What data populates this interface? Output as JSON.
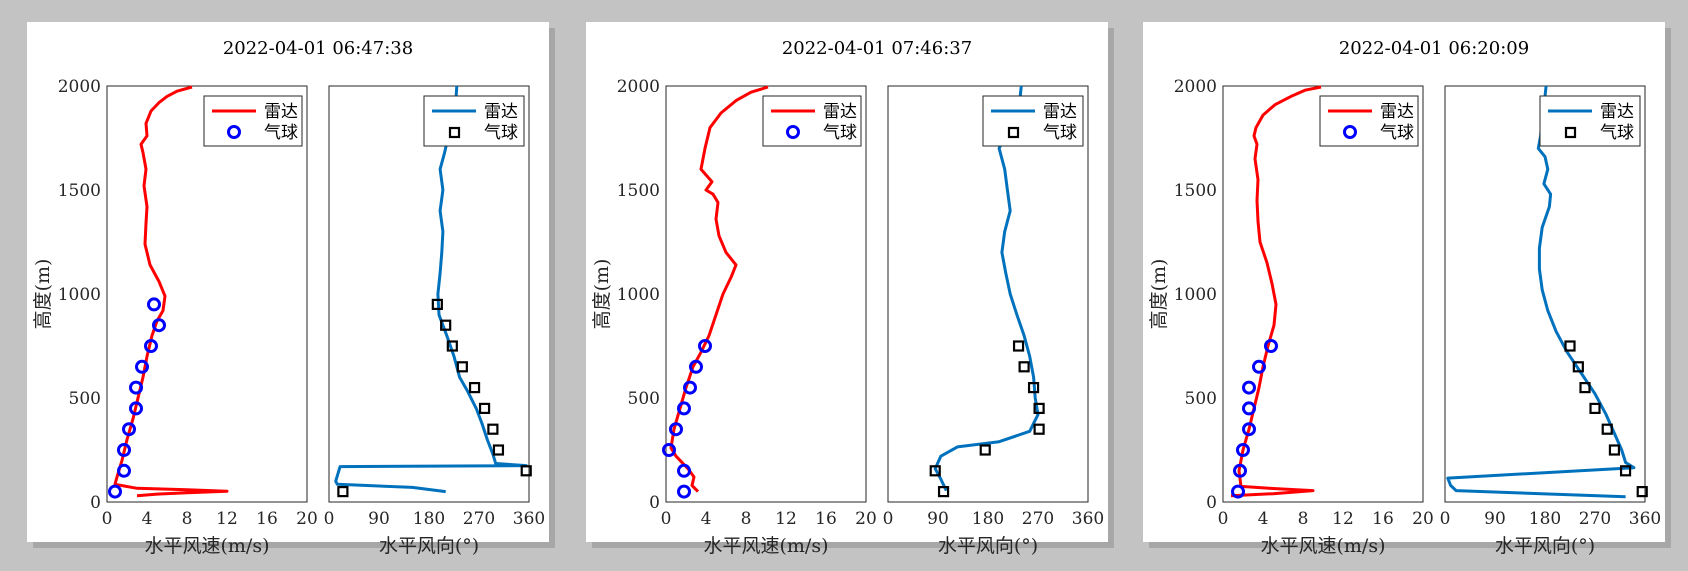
{
  "colors": {
    "radar_speed": "#ff0000",
    "balloon_speed": "#0000ff",
    "radar_dir": "#0072bd",
    "balloon_dir": "#000000"
  },
  "chart_data": [
    {
      "type": "line",
      "title": "2022-04-01 06:47:38",
      "legend": {
        "radar": "雷达",
        "balloon": "气球",
        "placement": "top-right"
      },
      "speed": {
        "xlabel": "水平风速(m/s)",
        "ylabel": "高度(m)",
        "xlim": [
          0,
          20
        ],
        "ylim": [
          0,
          2000
        ],
        "xticks": [
          "0",
          "4",
          "8",
          "12",
          "16",
          "20"
        ],
        "yticks": [
          "0",
          "500",
          "1000",
          "1500",
          "2000"
        ],
        "grid": true,
        "radar": [
          [
            3,
            30
          ],
          [
            5,
            38
          ],
          [
            8,
            44
          ],
          [
            12,
            52
          ],
          [
            8,
            59
          ],
          [
            3,
            66
          ],
          [
            0.8,
            85
          ],
          [
            1,
            120
          ],
          [
            1.5,
            200
          ],
          [
            2,
            300
          ],
          [
            2.6,
            400
          ],
          [
            3.1,
            500
          ],
          [
            3.6,
            600
          ],
          [
            4,
            700
          ],
          [
            4.5,
            800
          ],
          [
            5,
            870
          ],
          [
            5.6,
            920
          ],
          [
            5.8,
            990
          ],
          [
            5.2,
            1060
          ],
          [
            4.3,
            1140
          ],
          [
            3.8,
            1240
          ],
          [
            3.9,
            1340
          ],
          [
            4,
            1420
          ],
          [
            3.7,
            1520
          ],
          [
            3.9,
            1600
          ],
          [
            3.6,
            1680
          ],
          [
            3.4,
            1720
          ],
          [
            4,
            1760
          ],
          [
            3.9,
            1820
          ],
          [
            4.4,
            1880
          ],
          [
            5.2,
            1920
          ],
          [
            6,
            1950
          ],
          [
            7,
            1975
          ],
          [
            8.5,
            1995
          ]
        ],
        "balloon": [
          [
            0.8,
            50
          ],
          [
            1.7,
            150
          ],
          [
            1.7,
            250
          ],
          [
            2.2,
            350
          ],
          [
            2.9,
            450
          ],
          [
            2.9,
            550
          ],
          [
            3.5,
            650
          ],
          [
            4.4,
            750
          ],
          [
            5.2,
            850
          ],
          [
            4.7,
            950
          ]
        ]
      },
      "direction": {
        "xlabel": "水平风向(°)",
        "xlim": [
          0,
          360
        ],
        "ylim": [
          0,
          2000
        ],
        "xticks": [
          "0",
          "90",
          "180",
          "270",
          "360"
        ],
        "grid": true,
        "radar": [
          [
            210,
            50
          ],
          [
            150,
            70
          ],
          [
            15,
            85
          ],
          [
            12,
            100
          ],
          [
            20,
            170
          ],
          [
            355,
            175
          ],
          [
            300,
            185
          ],
          [
            295,
            230
          ],
          [
            285,
            300
          ],
          [
            275,
            380
          ],
          [
            265,
            450
          ],
          [
            250,
            530
          ],
          [
            235,
            600
          ],
          [
            225,
            700
          ],
          [
            212,
            800
          ],
          [
            198,
            900
          ],
          [
            196,
            1000
          ],
          [
            200,
            1100
          ],
          [
            203,
            1200
          ],
          [
            205,
            1300
          ],
          [
            200,
            1400
          ],
          [
            205,
            1500
          ],
          [
            200,
            1600
          ],
          [
            208,
            1680
          ],
          [
            215,
            1760
          ],
          [
            225,
            1840
          ],
          [
            228,
            1920
          ],
          [
            230,
            2000
          ]
        ],
        "balloon": [
          [
            25,
            50
          ],
          [
            355,
            150
          ],
          [
            305,
            250
          ],
          [
            295,
            350
          ],
          [
            280,
            450
          ],
          [
            262,
            550
          ],
          [
            240,
            650
          ],
          [
            222,
            750
          ],
          [
            210,
            850
          ],
          [
            195,
            950
          ]
        ]
      }
    },
    {
      "type": "line",
      "title": "2022-04-01 07:46:37",
      "legend": {
        "radar": "雷达",
        "balloon": "气球",
        "placement": "top-right"
      },
      "speed": {
        "xlabel": "水平风速(m/s)",
        "ylabel": "高度(m)",
        "xlim": [
          0,
          20
        ],
        "ylim": [
          0,
          2000
        ],
        "xticks": [
          "0",
          "4",
          "8",
          "12",
          "16",
          "20"
        ],
        "yticks": [
          "0",
          "500",
          "1000",
          "1500",
          "2000"
        ],
        "grid": true,
        "radar": [
          [
            3.2,
            50
          ],
          [
            2.6,
            80
          ],
          [
            2.8,
            120
          ],
          [
            2.2,
            160
          ],
          [
            1,
            220
          ],
          [
            0.5,
            260
          ],
          [
            0.8,
            350
          ],
          [
            1.4,
            450
          ],
          [
            2,
            550
          ],
          [
            2.7,
            650
          ],
          [
            3.5,
            720
          ],
          [
            4.3,
            800
          ],
          [
            5,
            900
          ],
          [
            5.7,
            1000
          ],
          [
            6.5,
            1080
          ],
          [
            7,
            1140
          ],
          [
            6,
            1200
          ],
          [
            5.3,
            1280
          ],
          [
            5,
            1360
          ],
          [
            5.2,
            1440
          ],
          [
            4.7,
            1480
          ],
          [
            4,
            1500
          ],
          [
            4.6,
            1540
          ],
          [
            3.5,
            1600
          ],
          [
            3.9,
            1700
          ],
          [
            4.4,
            1800
          ],
          [
            5.5,
            1870
          ],
          [
            7,
            1930
          ],
          [
            8.5,
            1970
          ],
          [
            10.2,
            1995
          ]
        ],
        "balloon": [
          [
            1.8,
            50
          ],
          [
            1.8,
            150
          ],
          [
            0.3,
            250
          ],
          [
            1,
            350
          ],
          [
            1.8,
            450
          ],
          [
            2.4,
            550
          ],
          [
            3,
            650
          ],
          [
            3.9,
            750
          ]
        ]
      },
      "direction": {
        "xlabel": "水平风向(°)",
        "xlim": [
          0,
          360
        ],
        "ylim": [
          0,
          2000
        ],
        "xticks": [
          "0",
          "90",
          "180",
          "270",
          "360"
        ],
        "grid": true,
        "radar": [
          [
            105,
            55
          ],
          [
            95,
            110
          ],
          [
            85,
            160
          ],
          [
            95,
            220
          ],
          [
            125,
            265
          ],
          [
            200,
            290
          ],
          [
            255,
            340
          ],
          [
            270,
            420
          ],
          [
            265,
            500
          ],
          [
            262,
            600
          ],
          [
            255,
            700
          ],
          [
            245,
            800
          ],
          [
            232,
            900
          ],
          [
            220,
            1000
          ],
          [
            212,
            1100
          ],
          [
            205,
            1200
          ],
          [
            210,
            1300
          ],
          [
            220,
            1400
          ],
          [
            215,
            1500
          ],
          [
            210,
            1600
          ],
          [
            200,
            1700
          ],
          [
            218,
            1800
          ],
          [
            235,
            1880
          ],
          [
            238,
            1950
          ],
          [
            240,
            2000
          ]
        ],
        "balloon": [
          [
            100,
            50
          ],
          [
            85,
            150
          ],
          [
            175,
            250
          ],
          [
            272,
            350
          ],
          [
            272,
            450
          ],
          [
            262,
            550
          ],
          [
            245,
            650
          ],
          [
            235,
            750
          ]
        ]
      }
    },
    {
      "type": "line",
      "title": "2022-04-01 06:20:09",
      "legend": {
        "radar": "雷达",
        "balloon": "气球",
        "placement": "top-right"
      },
      "speed": {
        "xlabel": "水平风速(m/s)",
        "ylabel": "高度(m)",
        "xlim": [
          0,
          20
        ],
        "ylim": [
          0,
          2000
        ],
        "xticks": [
          "0",
          "4",
          "8",
          "12",
          "16",
          "20"
        ],
        "yticks": [
          "0",
          "500",
          "1000",
          "1500",
          "2000"
        ],
        "grid": true,
        "radar": [
          [
            0.8,
            30
          ],
          [
            5,
            40
          ],
          [
            9,
            55
          ],
          [
            5,
            65
          ],
          [
            1.8,
            75
          ],
          [
            1.6,
            150
          ],
          [
            2,
            250
          ],
          [
            2.6,
            350
          ],
          [
            3.1,
            450
          ],
          [
            3.6,
            550
          ],
          [
            4,
            650
          ],
          [
            4.5,
            750
          ],
          [
            5.1,
            850
          ],
          [
            5.3,
            950
          ],
          [
            4.9,
            1050
          ],
          [
            4.4,
            1150
          ],
          [
            3.7,
            1250
          ],
          [
            3.5,
            1350
          ],
          [
            3.4,
            1450
          ],
          [
            3.5,
            1550
          ],
          [
            3.2,
            1650
          ],
          [
            3.4,
            1720
          ],
          [
            3.1,
            1760
          ],
          [
            3.3,
            1800
          ],
          [
            4,
            1860
          ],
          [
            5.2,
            1910
          ],
          [
            6.8,
            1950
          ],
          [
            8.2,
            1980
          ],
          [
            9.8,
            1995
          ]
        ],
        "balloon": [
          [
            1.5,
            50
          ],
          [
            1.7,
            150
          ],
          [
            2,
            250
          ],
          [
            2.6,
            350
          ],
          [
            2.6,
            450
          ],
          [
            2.6,
            550
          ],
          [
            3.6,
            650
          ],
          [
            4.8,
            750
          ]
        ]
      },
      "direction": {
        "xlabel": "水平风向(°)",
        "xlim": [
          0,
          360
        ],
        "ylim": [
          0,
          2000
        ],
        "xticks": [
          "0",
          "90",
          "180",
          "270",
          "360"
        ],
        "grid": true,
        "radar": [
          [
            325,
            25
          ],
          [
            20,
            55
          ],
          [
            10,
            80
          ],
          [
            5,
            115
          ],
          [
            340,
            165
          ],
          [
            325,
            190
          ],
          [
            318,
            250
          ],
          [
            305,
            330
          ],
          [
            290,
            420
          ],
          [
            270,
            520
          ],
          [
            245,
            620
          ],
          [
            220,
            720
          ],
          [
            200,
            820
          ],
          [
            185,
            920
          ],
          [
            175,
            1020
          ],
          [
            170,
            1120
          ],
          [
            170,
            1220
          ],
          [
            175,
            1320
          ],
          [
            188,
            1420
          ],
          [
            190,
            1480
          ],
          [
            178,
            1530
          ],
          [
            185,
            1600
          ],
          [
            180,
            1660
          ],
          [
            168,
            1700
          ],
          [
            172,
            1760
          ],
          [
            175,
            1860
          ],
          [
            180,
            1950
          ],
          [
            182,
            2000
          ]
        ],
        "balloon": [
          [
            355,
            50
          ],
          [
            325,
            150
          ],
          [
            305,
            250
          ],
          [
            292,
            350
          ],
          [
            270,
            450
          ],
          [
            252,
            550
          ],
          [
            240,
            650
          ],
          [
            225,
            750
          ]
        ]
      }
    }
  ]
}
